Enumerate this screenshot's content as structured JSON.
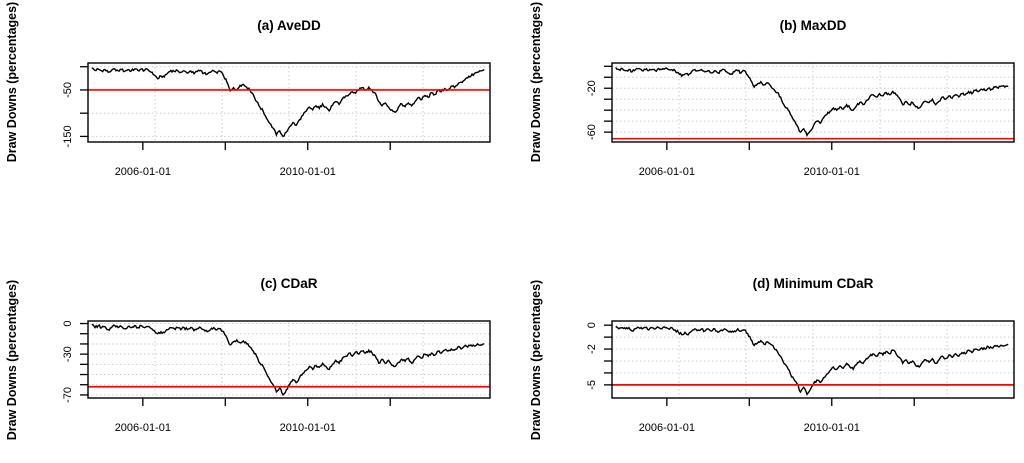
{
  "figure": {
    "background": "#FFFFFF",
    "series_color": "#000000",
    "threshold_color": "#FF0000",
    "grid_color": "#CDCDCD",
    "y_axis_label": "Draw Downs (percentages)"
  },
  "chart_data": [
    {
      "id": "a",
      "type": "line",
      "title": "(a) AveDD",
      "ylabel": "Draw Downs (percentages)",
      "x_axis": {
        "lim": [
          2004.67,
          2014.42
        ],
        "tick_values": [
          2006,
          2008,
          2010,
          2012
        ],
        "tick_labels": [
          "2006-01-01",
          "",
          "2010-01-01",
          ""
        ]
      },
      "y_axis": {
        "lim": [
          -162,
          8
        ],
        "tick_values": [
          0,
          -50,
          -100,
          -150
        ],
        "tick_labels": [
          "",
          "-50",
          "",
          "-150"
        ]
      },
      "red_line_y": -50,
      "grid": {
        "vertical_divisions": 6,
        "horizontal_at_ticks": true,
        "style": "dotted"
      },
      "series": {
        "x_start": 2004.76,
        "x_step": 0.08,
        "y": [
          -3,
          -8,
          -5,
          -9,
          -6,
          -12,
          -8,
          -5,
          -9,
          -6,
          -10,
          -6,
          -9,
          -5,
          -8,
          -5,
          -8,
          -6,
          -12,
          -18,
          -26,
          -20,
          -22,
          -14,
          -8,
          -10,
          -8,
          -12,
          -9,
          -14,
          -9,
          -15,
          -10,
          -8,
          -14,
          -16,
          -12,
          -9,
          -14,
          -10,
          -20,
          -33,
          -52,
          -45,
          -50,
          -40,
          -38,
          -44,
          -51,
          -60,
          -75,
          -87,
          -96,
          -111,
          -122,
          -132,
          -147,
          -138,
          -150,
          -141,
          -129,
          -120,
          -126,
          -114,
          -105,
          -96,
          -87,
          -93,
          -84,
          -90,
          -80,
          -87,
          -95,
          -83,
          -75,
          -81,
          -69,
          -63,
          -60,
          -54,
          -57,
          -50,
          -45,
          -50,
          -44,
          -51,
          -57,
          -75,
          -84,
          -78,
          -87,
          -93,
          -98,
          -87,
          -80,
          -86,
          -78,
          -84,
          -75,
          -66,
          -71,
          -62,
          -66,
          -56,
          -60,
          -51,
          -54,
          -47,
          -50,
          -42,
          -45,
          -38,
          -33,
          -29,
          -24,
          -20,
          -15,
          -12,
          -9,
          -6
        ]
      }
    },
    {
      "id": "b",
      "type": "line",
      "title": "(b) MaxDD",
      "ylabel": "Draw Downs (percentages)",
      "x_axis": {
        "lim": [
          2004.67,
          2014.42
        ],
        "tick_values": [
          2006,
          2008,
          2010,
          2012
        ],
        "tick_labels": [
          "2006-01-01",
          "",
          "2010-01-01",
          ""
        ]
      },
      "y_axis": {
        "lim": [
          -69,
          3
        ],
        "tick_values": [
          0,
          -10,
          -20,
          -30,
          -40,
          -50,
          -60
        ],
        "tick_labels": [
          "",
          "",
          "-20",
          "",
          "",
          "",
          "-60"
        ]
      },
      "red_line_y": -66,
      "grid": {
        "vertical_divisions": 6,
        "horizontal_at_ticks": true,
        "style": "dotted"
      },
      "series": {
        "x_start": 2004.76,
        "x_step": 0.08,
        "y": [
          -1,
          -3,
          -2,
          -4,
          -3,
          -5,
          -3,
          -2,
          -4,
          -3,
          -4,
          -3,
          -4,
          -2,
          -3,
          -2,
          -3,
          -3,
          -4,
          -6,
          -9,
          -7,
          -8,
          -5,
          -3,
          -4,
          -3,
          -5,
          -4,
          -6,
          -4,
          -6,
          -4,
          -3,
          -6,
          -7,
          -5,
          -4,
          -6,
          -4,
          -8,
          -13,
          -19,
          -16,
          -14,
          -17,
          -15,
          -18,
          -21,
          -24,
          -28,
          -35,
          -38,
          -44,
          -49,
          -54,
          -60,
          -57,
          -63,
          -59,
          -54,
          -50,
          -52,
          -47,
          -44,
          -41,
          -38,
          -40,
          -37,
          -39,
          -35,
          -38,
          -40,
          -36,
          -33,
          -35,
          -31,
          -28,
          -26,
          -28,
          -25,
          -27,
          -24,
          -26,
          -23,
          -26,
          -29,
          -35,
          -32,
          -35,
          -33,
          -37,
          -38,
          -34,
          -32,
          -33,
          -30,
          -35,
          -32,
          -28,
          -30,
          -27,
          -29,
          -26,
          -28,
          -25,
          -26,
          -23,
          -25,
          -22,
          -23,
          -21,
          -22,
          -20,
          -21,
          -19,
          -20,
          -18,
          -19,
          -18
        ]
      }
    },
    {
      "id": "c",
      "type": "line",
      "title": "(c) CDaR",
      "ylabel": "Draw Downs (percentages)",
      "x_axis": {
        "lim": [
          2004.67,
          2014.42
        ],
        "tick_values": [
          2006,
          2008,
          2010,
          2012
        ],
        "tick_labels": [
          "2006-01-01",
          "",
          "2010-01-01",
          ""
        ]
      },
      "y_axis": {
        "lim": [
          -73,
          2.5
        ],
        "tick_values": [
          0,
          -10,
          -20,
          -30,
          -40,
          -50,
          -60,
          -70
        ],
        "tick_labels": [
          "0",
          "",
          "",
          "-30",
          "",
          "",
          "",
          "-70"
        ]
      },
      "red_line_y": -62,
      "grid": {
        "vertical_divisions": 6,
        "horizontal_at_ticks": true,
        "style": "dotted"
      },
      "series": {
        "x_start": 2004.76,
        "x_step": 0.08,
        "y": [
          -1,
          -4,
          -2,
          -4,
          -3,
          -6,
          -4,
          -2,
          -4,
          -3,
          -5,
          -3,
          -4,
          -2,
          -4,
          -2,
          -4,
          -3,
          -5,
          -7,
          -10,
          -8,
          -9,
          -6,
          -4,
          -5,
          -4,
          -6,
          -4,
          -6,
          -4,
          -7,
          -5,
          -4,
          -6,
          -8,
          -6,
          -4,
          -6,
          -5,
          -8,
          -14,
          -21,
          -18,
          -16,
          -19,
          -17,
          -20,
          -23,
          -27,
          -32,
          -39,
          -42,
          -49,
          -55,
          -60,
          -67,
          -63,
          -70,
          -65,
          -60,
          -55,
          -58,
          -53,
          -49,
          -46,
          -42,
          -45,
          -41,
          -43,
          -39,
          -42,
          -45,
          -40,
          -36,
          -39,
          -34,
          -32,
          -29,
          -32,
          -28,
          -30,
          -27,
          -29,
          -26,
          -29,
          -32,
          -39,
          -35,
          -39,
          -36,
          -41,
          -42,
          -38,
          -35,
          -37,
          -34,
          -39,
          -35,
          -32,
          -34,
          -30,
          -32,
          -29,
          -31,
          -27,
          -29,
          -26,
          -27,
          -25,
          -26,
          -23,
          -25,
          -22,
          -23,
          -21,
          -22,
          -20,
          -21,
          -20
        ]
      }
    },
    {
      "id": "d",
      "type": "line",
      "title": "(d) Minimum CDaR",
      "ylabel": "Draw Downs (percentages)",
      "x_axis": {
        "lim": [
          2004.67,
          2014.42
        ],
        "tick_values": [
          2006,
          2008,
          2010,
          2012
        ],
        "tick_labels": [
          "2006-01-01",
          "",
          "2010-01-01",
          ""
        ]
      },
      "y_axis": {
        "lim": [
          -6.1,
          0.35
        ],
        "tick_values": [
          0,
          -1,
          -2,
          -3,
          -4,
          -5
        ],
        "tick_labels": [
          "0",
          "",
          "-2",
          "",
          "",
          "-5"
        ]
      },
      "red_line_y": -5,
      "grid": {
        "vertical_divisions": 6,
        "horizontal_at_ticks": true,
        "style": "dotted"
      },
      "series": {
        "x_start": 2004.76,
        "x_step": 0.08,
        "y": [
          -0.1,
          -0.3,
          -0.2,
          -0.3,
          -0.2,
          -0.5,
          -0.3,
          -0.2,
          -0.3,
          -0.2,
          -0.4,
          -0.2,
          -0.3,
          -0.2,
          -0.3,
          -0.2,
          -0.3,
          -0.2,
          -0.4,
          -0.6,
          -0.8,
          -0.6,
          -0.8,
          -0.5,
          -0.3,
          -0.4,
          -0.3,
          -0.5,
          -0.3,
          -0.5,
          -0.3,
          -0.6,
          -0.4,
          -0.3,
          -0.5,
          -0.6,
          -0.5,
          -0.3,
          -0.5,
          -0.4,
          -0.7,
          -1.2,
          -1.7,
          -1.5,
          -1.3,
          -1.6,
          -1.4,
          -1.6,
          -1.9,
          -2.2,
          -2.6,
          -3.2,
          -3.5,
          -4.1,
          -4.5,
          -4.9,
          -5.6,
          -5.2,
          -5.8,
          -5.4,
          -4.9,
          -4.6,
          -4.8,
          -4.4,
          -4.1,
          -3.8,
          -3.5,
          -3.7,
          -3.4,
          -3.6,
          -3.2,
          -3.5,
          -3.7,
          -3.3,
          -3.0,
          -3.2,
          -2.8,
          -2.6,
          -2.4,
          -2.6,
          -2.3,
          -2.5,
          -2.2,
          -2.4,
          -2.1,
          -2.4,
          -2.7,
          -3.2,
          -2.9,
          -3.2,
          -3.0,
          -3.4,
          -3.5,
          -3.1,
          -2.9,
          -3.1,
          -2.8,
          -3.2,
          -2.9,
          -2.6,
          -2.8,
          -2.5,
          -2.7,
          -2.4,
          -2.6,
          -2.3,
          -2.4,
          -2.1,
          -2.3,
          -2.0,
          -2.1,
          -1.9,
          -2.0,
          -1.8,
          -1.9,
          -1.7,
          -1.8,
          -1.7,
          -1.7,
          -1.6
        ]
      }
    }
  ]
}
